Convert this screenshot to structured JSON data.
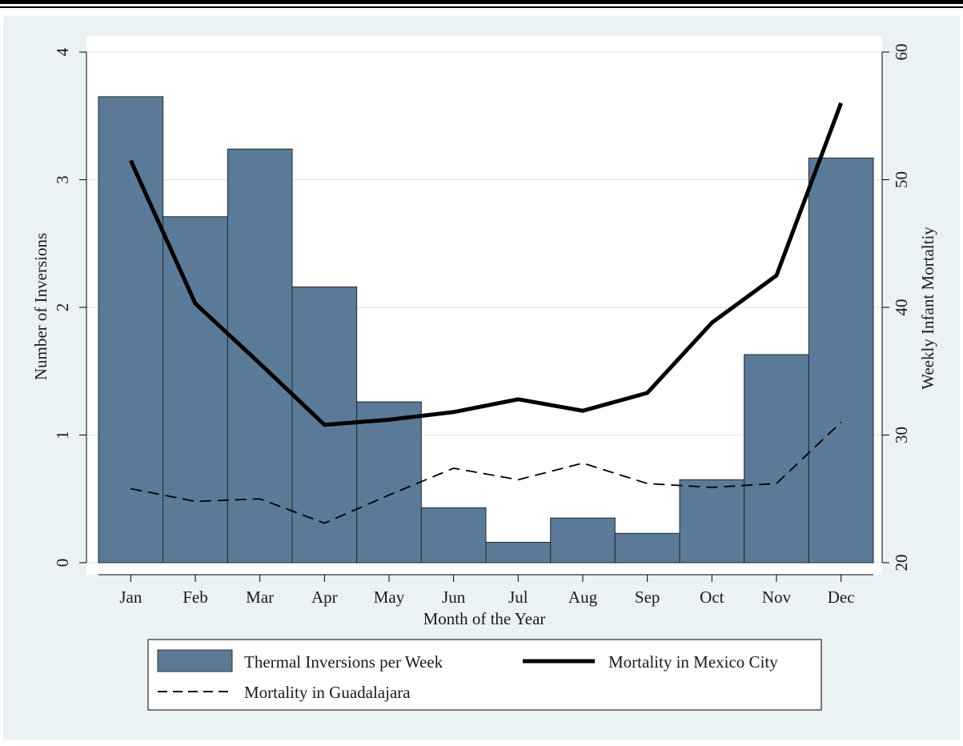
{
  "chart_data": {
    "type": "bar",
    "categories": [
      "Jan",
      "Feb",
      "Mar",
      "Apr",
      "May",
      "Jun",
      "Jul",
      "Aug",
      "Sep",
      "Oct",
      "Nov",
      "Dec"
    ],
    "xlabel": "Month of the Year",
    "ylabel": "Number of Inversions",
    "y2label": "Weekly Infant Mortaltiy",
    "ylim": [
      0,
      4
    ],
    "y2lim": [
      20,
      60
    ],
    "yticks": [
      "0",
      "1",
      "2",
      "3",
      "4"
    ],
    "y2ticks": [
      "20",
      "30",
      "40",
      "50",
      "60"
    ],
    "grid": true,
    "legend_position": "bottom",
    "colors": {
      "bars": "#5b7a97",
      "mexico_city": "#000000",
      "guadalajara": "#000000",
      "plot_bg": "#ffffff",
      "outer_bg": "#eaf2f3"
    },
    "series": [
      {
        "name": "Thermal Inversions per Week",
        "type": "bar",
        "axis": "left",
        "values": [
          3.65,
          2.71,
          3.24,
          2.16,
          1.26,
          0.43,
          0.16,
          0.35,
          0.23,
          0.65,
          1.63,
          3.17
        ]
      },
      {
        "name": "Mortality in Mexico City",
        "type": "line",
        "axis": "right",
        "style": "solid",
        "values": [
          51.5,
          40.3,
          35.6,
          30.8,
          31.2,
          31.8,
          32.8,
          31.9,
          33.3,
          38.8,
          42.5,
          56.0
        ]
      },
      {
        "name": "Mortality in Guadalajara",
        "type": "line",
        "axis": "right",
        "style": "dashed",
        "values": [
          25.8,
          24.8,
          25.0,
          23.1,
          25.3,
          27.4,
          26.5,
          27.8,
          26.2,
          25.9,
          26.2,
          31.0
        ]
      }
    ]
  }
}
